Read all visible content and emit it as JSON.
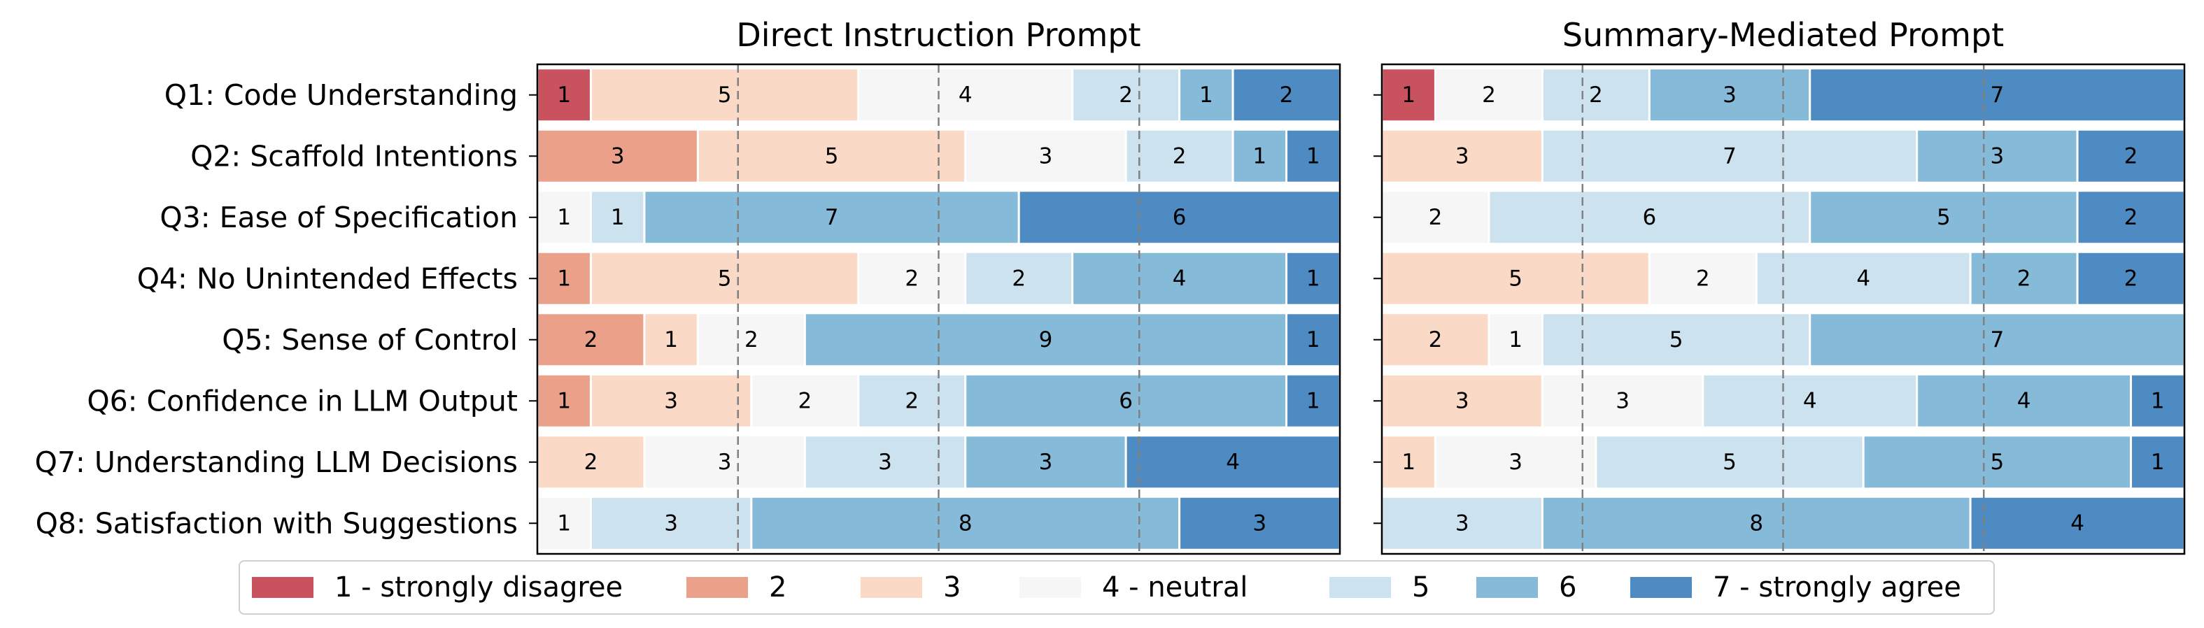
{
  "chart_data": {
    "type": "bar",
    "stacked": true,
    "orientation": "horizontal",
    "categories": [
      "Q1: Code Understanding",
      "Q2: Scaffold Intentions",
      "Q3: Ease of Specification",
      "Q4: No Unintended Effects",
      "Q5: Sense of Control",
      "Q6: Confidence in LLM Output",
      "Q7: Understanding LLM Decisions",
      "Q8: Satisfaction with Suggestions"
    ],
    "levels": [
      "1 - strongly disagree",
      "2",
      "3",
      "4 - neutral",
      "5",
      "6",
      "7 - strongly agree"
    ],
    "colors": [
      "#c8535e",
      "#eba189",
      "#fbd9c7",
      "#f6f6f6",
      "#cde2ef",
      "#86bad9",
      "#4e8bc2"
    ],
    "legend_position": "bottom",
    "total_per_row": 15,
    "panels": [
      {
        "title": "Direct Instruction Prompt",
        "counts": [
          [
            1,
            0,
            5,
            4,
            2,
            1,
            2
          ],
          [
            0,
            3,
            5,
            3,
            2,
            1,
            1
          ],
          [
            0,
            0,
            0,
            1,
            1,
            7,
            6
          ],
          [
            0,
            1,
            5,
            2,
            2,
            4,
            1
          ],
          [
            0,
            2,
            1,
            2,
            0,
            9,
            1
          ],
          [
            0,
            1,
            3,
            2,
            2,
            6,
            1
          ],
          [
            0,
            0,
            2,
            3,
            3,
            3,
            4
          ],
          [
            0,
            0,
            0,
            1,
            3,
            8,
            3
          ]
        ]
      },
      {
        "title": "Summary-Mediated Prompt",
        "counts": [
          [
            1,
            0,
            0,
            2,
            2,
            3,
            7
          ],
          [
            0,
            0,
            3,
            0,
            7,
            3,
            2
          ],
          [
            0,
            0,
            0,
            2,
            6,
            5,
            2
          ],
          [
            0,
            0,
            5,
            2,
            4,
            2,
            2
          ],
          [
            0,
            0,
            2,
            1,
            5,
            7,
            0
          ],
          [
            0,
            0,
            3,
            3,
            4,
            4,
            1
          ],
          [
            0,
            0,
            1,
            3,
            5,
            5,
            1
          ],
          [
            0,
            0,
            0,
            0,
            3,
            8,
            4
          ]
        ]
      }
    ],
    "reference_lines": [
      3.75,
      7.5,
      11.25
    ]
  }
}
